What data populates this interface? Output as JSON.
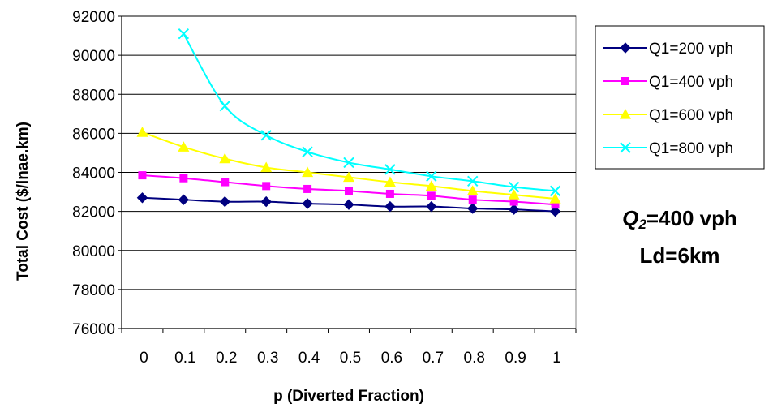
{
  "chart_data": {
    "type": "line",
    "x": [
      0,
      0.1,
      0.2,
      0.3,
      0.4,
      0.5,
      0.6,
      0.7,
      0.8,
      0.9,
      1
    ],
    "xlabel": "p (Diverted Fraction)",
    "ylabel": "Total Cost ($/lnae.km)",
    "ylim": [
      76000,
      92000
    ],
    "yticks": [
      76000,
      78000,
      80000,
      82000,
      84000,
      86000,
      88000,
      90000,
      92000
    ],
    "grid": "horizontal",
    "legend_position": "right",
    "series": [
      {
        "name": "Q1=200 vph",
        "color": "#00007F",
        "marker": "diamond",
        "values": [
          82700,
          82600,
          82500,
          82500,
          82400,
          82350,
          82250,
          82250,
          82150,
          82100,
          82000
        ]
      },
      {
        "name": "Q1=400 vph",
        "color": "#FF00FF",
        "marker": "square",
        "values": [
          83850,
          83700,
          83500,
          83300,
          83150,
          83050,
          82900,
          82800,
          82600,
          82500,
          82350
        ]
      },
      {
        "name": "Q1=600 vph",
        "color": "#FFFF00",
        "marker": "triangle",
        "values": [
          86050,
          85300,
          84700,
          84250,
          84000,
          83750,
          83500,
          83300,
          83050,
          82850,
          82650
        ]
      },
      {
        "name": "Q1=800 vph",
        "color": "#00FFFF",
        "marker": "x",
        "values": [
          null,
          91100,
          87400,
          85900,
          85050,
          84500,
          84150,
          83800,
          83550,
          83250,
          83050
        ]
      }
    ],
    "annotation": {
      "q_letter": "Q",
      "q_sub": "2",
      "q_rest": "=400 vph",
      "line2": "Ld=6km"
    }
  }
}
